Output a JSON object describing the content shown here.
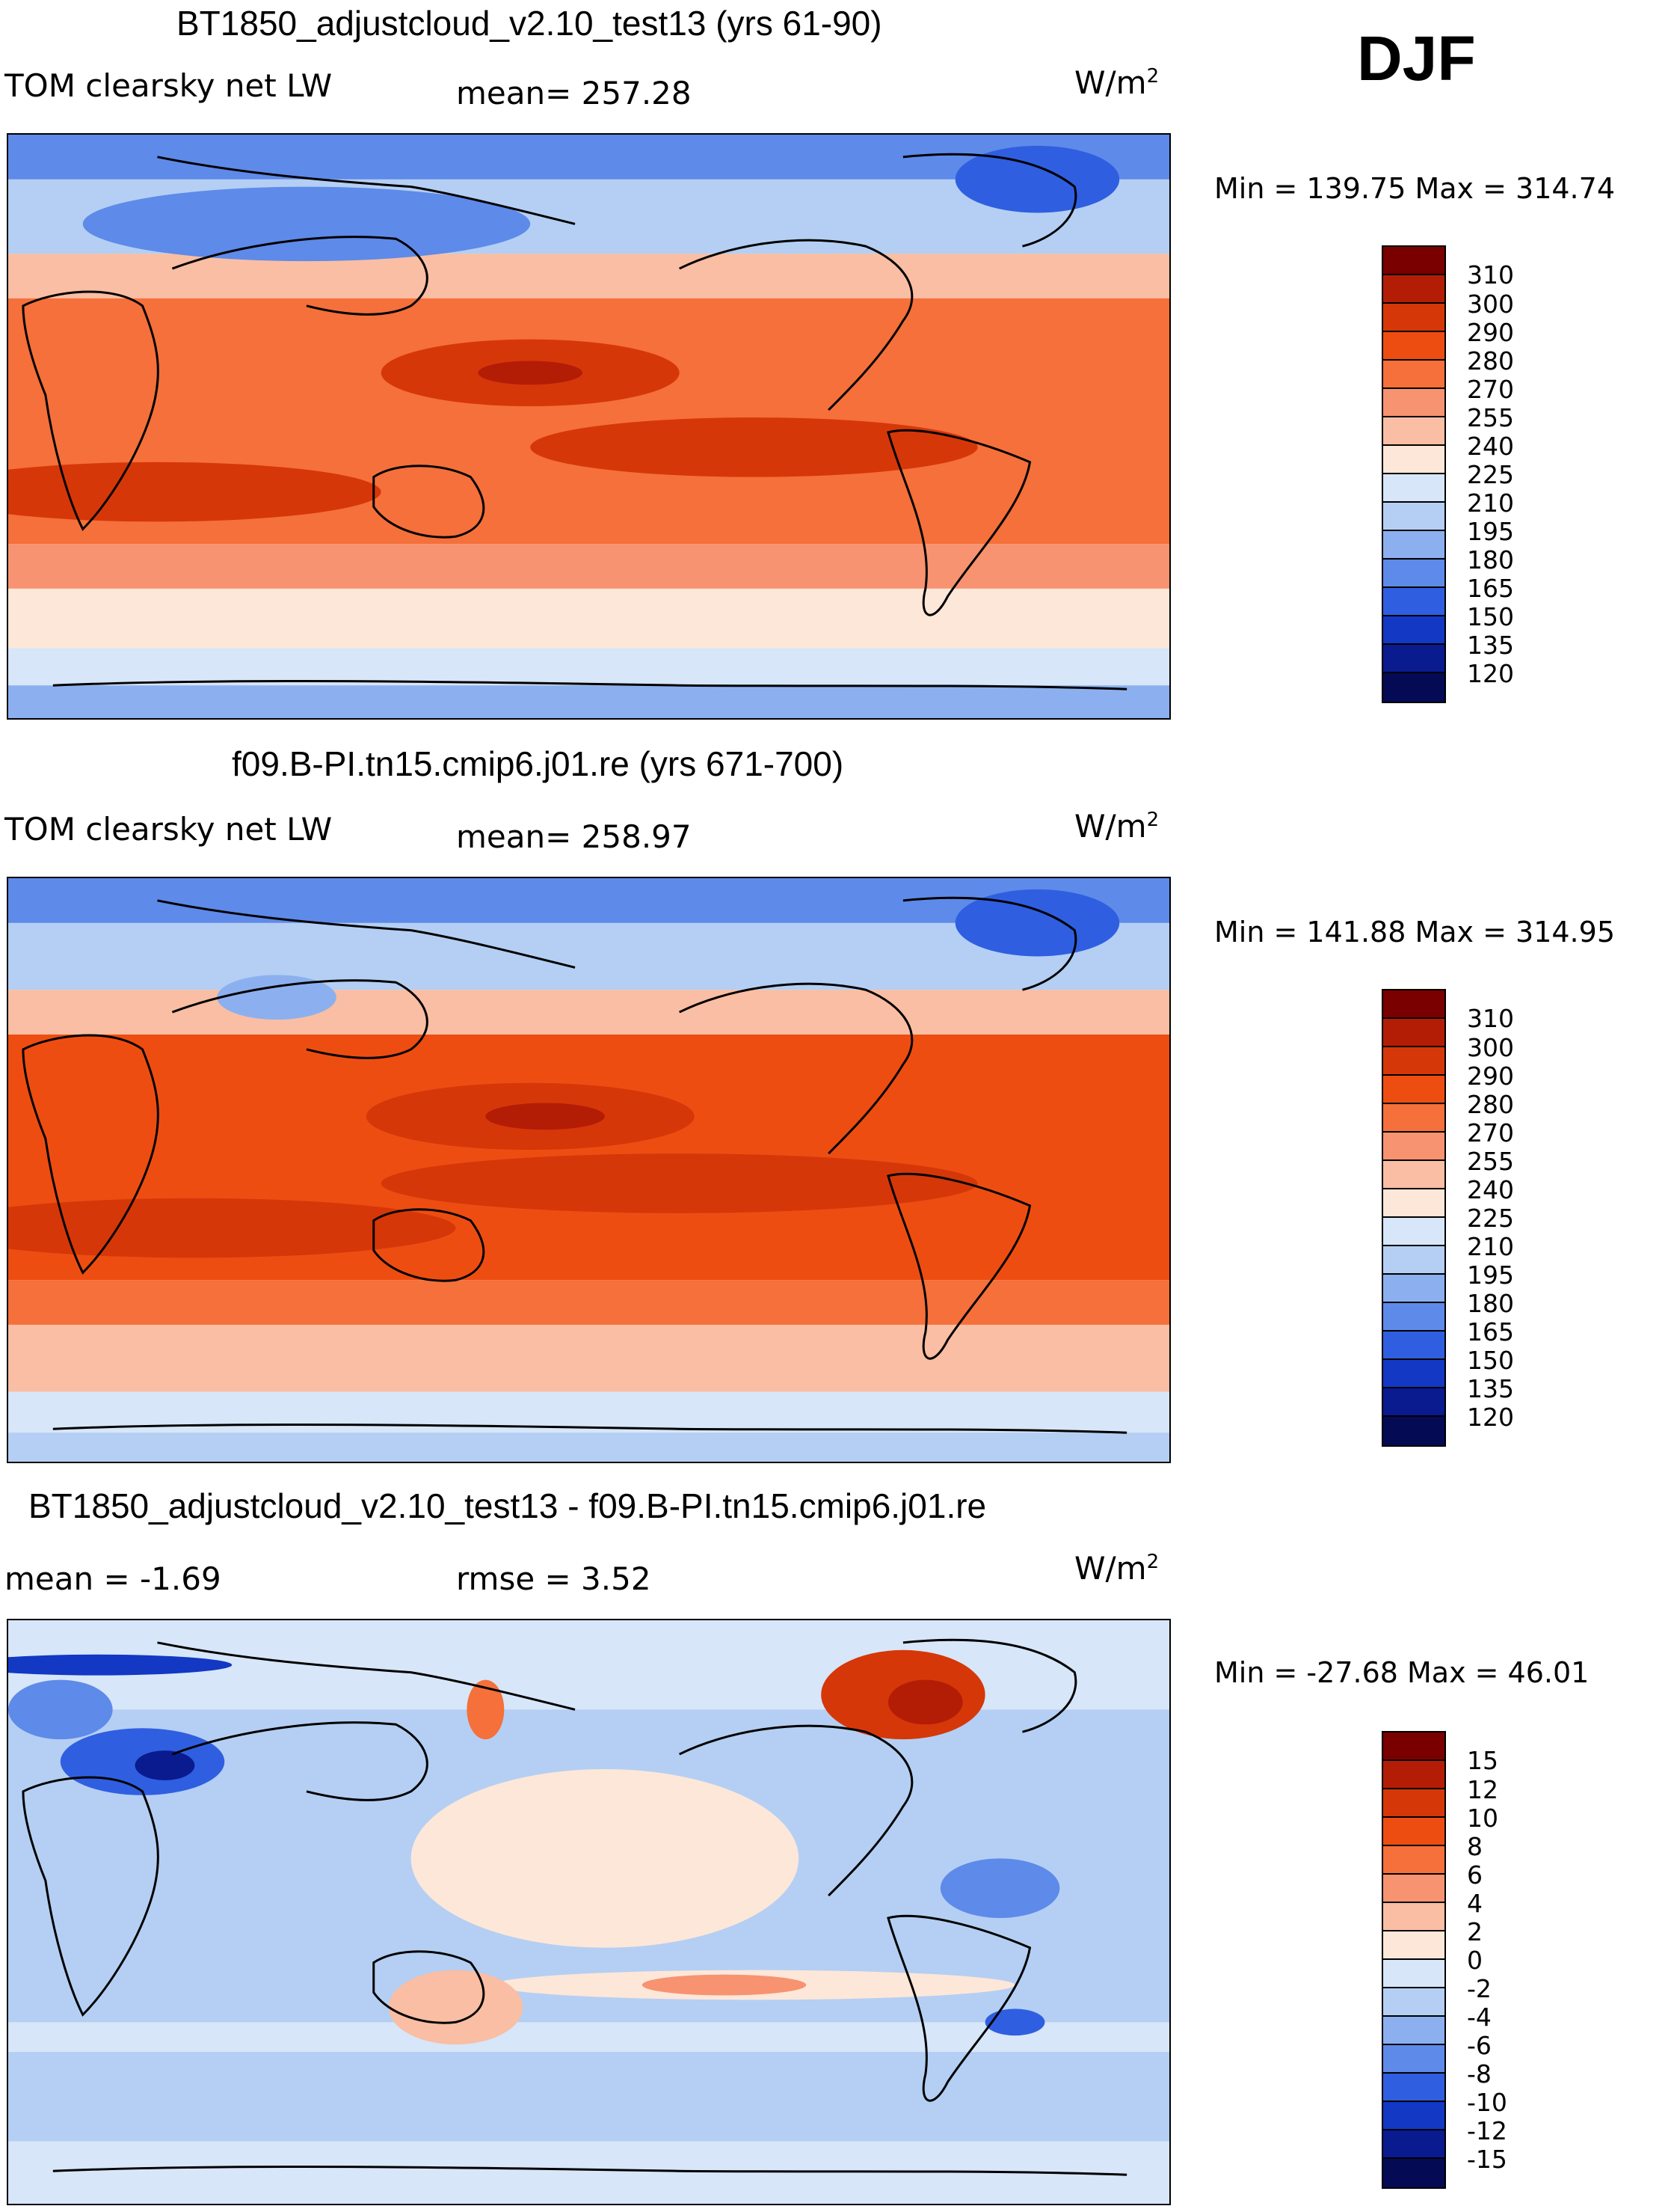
{
  "season": "DJF",
  "coast_color": "#000000",
  "panels": [
    {
      "title": "BT1850_adjustcloud_v2.10_test13 (yrs 61-90)",
      "left_label": "TOM clearsky net LW",
      "center_label": "mean=  257.28",
      "units": "W/m",
      "units_exp": "2",
      "minmax": "Min = 139.75 Max = 314.74",
      "colorbar": {
        "labels": [
          "310",
          "300",
          "290",
          "280",
          "270",
          "255",
          "240",
          "225",
          "210",
          "195",
          "180",
          "165",
          "150",
          "135",
          "120"
        ],
        "colors": [
          "#7a0000",
          "#b31d06",
          "#d63709",
          "#ee4d12",
          "#f5703a",
          "#f79370",
          "#f9bea3",
          "#fde7d9",
          "#d7e6f8",
          "#b4cff3",
          "#8cb0ef",
          "#5e8ae9",
          "#2f5fe0",
          "#1238c4",
          "#0a1a8f",
          "#050a55"
        ]
      },
      "regions": [
        {
          "name": "tropics-band",
          "color": "#f5703a"
        },
        {
          "name": "subtropics-band",
          "color": "#f79370"
        },
        {
          "name": "midlat-band",
          "color": "#f9bea3"
        },
        {
          "name": "polar-band",
          "color": "#b4cff3"
        }
      ]
    },
    {
      "title": "f09.B-PI.tn15.cmip6.j01.re (yrs 671-700)",
      "left_label": "TOM clearsky net LW",
      "center_label": "mean=  258.97",
      "units": "W/m",
      "units_exp": "2",
      "minmax": "Min = 141.88 Max = 314.95",
      "colorbar": {
        "labels": [
          "310",
          "300",
          "290",
          "280",
          "270",
          "255",
          "240",
          "225",
          "210",
          "195",
          "180",
          "165",
          "150",
          "135",
          "120"
        ],
        "colors": [
          "#7a0000",
          "#b31d06",
          "#d63709",
          "#ee4d12",
          "#f5703a",
          "#f79370",
          "#f9bea3",
          "#fde7d9",
          "#d7e6f8",
          "#b4cff3",
          "#8cb0ef",
          "#5e8ae9",
          "#2f5fe0",
          "#1238c4",
          "#0a1a8f",
          "#050a55"
        ]
      },
      "regions": [
        {
          "name": "tropics-band",
          "color": "#ee4d12"
        },
        {
          "name": "subtropics-band",
          "color": "#f5703a"
        },
        {
          "name": "midlat-band",
          "color": "#f9bea3"
        },
        {
          "name": "polar-band",
          "color": "#b4cff3"
        }
      ]
    },
    {
      "title": "BT1850_adjustcloud_v2.10_test13 - f09.B-PI.tn15.cmip6.j01.re",
      "left_label": "mean =   -1.69",
      "center_label": "rmse =    3.52",
      "units": "W/m",
      "units_exp": "2",
      "minmax": "Min = -27.68 Max =  46.01",
      "colorbar": {
        "labels": [
          "15",
          "12",
          "10",
          "8",
          "6",
          "4",
          "2",
          "0",
          "-2",
          "-4",
          "-6",
          "-8",
          "-10",
          "-12",
          "-15"
        ],
        "colors": [
          "#7a0000",
          "#b31d06",
          "#d63709",
          "#ee4d12",
          "#f5703a",
          "#f79370",
          "#f9bea3",
          "#fde7d9",
          "#d7e6f8",
          "#b4cff3",
          "#8cb0ef",
          "#5e8ae9",
          "#2f5fe0",
          "#1238c4",
          "#0a1a8f",
          "#050a55"
        ]
      },
      "regions": [
        {
          "name": "background",
          "color": "#b4cff3"
        },
        {
          "name": "equatorial-positive",
          "color": "#fde7d9"
        },
        {
          "name": "canada-positive",
          "color": "#d63709"
        },
        {
          "name": "eurasia-negative",
          "color": "#2f5fe0"
        }
      ]
    }
  ]
}
